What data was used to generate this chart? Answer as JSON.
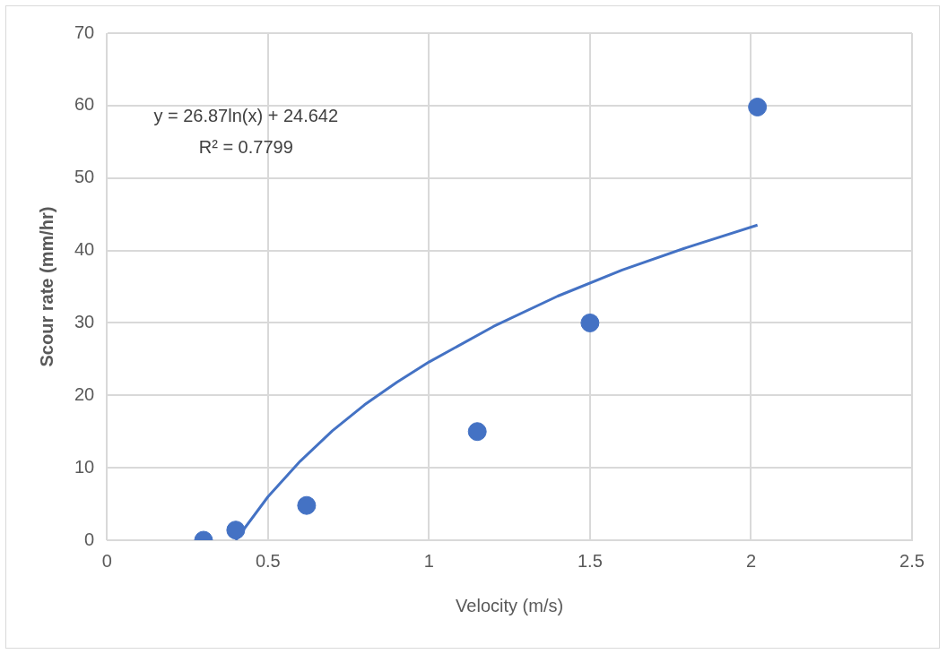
{
  "chart_data": {
    "type": "scatter",
    "xlabel": "Velocity (m/s)",
    "ylabel": "Scour rate (mm/hr)",
    "xlim": [
      0,
      2.5
    ],
    "xticks": [
      0,
      0.5,
      1,
      1.5,
      2,
      2.5
    ],
    "ylim": [
      0,
      70
    ],
    "yticks": [
      0,
      10,
      20,
      30,
      40,
      50,
      60,
      70
    ],
    "grid": true,
    "marker": "circle",
    "annotations": [
      "y = 26.87ln(x) + 24.642",
      "R² = 0.7799"
    ],
    "series": [
      {
        "type": "scatter",
        "color": "#4472c4",
        "x": [
          0.3,
          0.4,
          0.62,
          1.15,
          1.5,
          2.02
        ],
        "values": [
          0,
          1.4,
          4.8,
          15,
          30,
          59.8
        ]
      },
      {
        "type": "line",
        "marker": "none",
        "line_style": "solid",
        "color": "#4472c4",
        "x": [
          0.4,
          0.5,
          0.6,
          0.7,
          0.8,
          0.9,
          1.0,
          1.2,
          1.4,
          1.6,
          1.8,
          2.02
        ],
        "values": [
          0,
          6,
          10.9,
          15.1,
          18.7,
          21.8,
          24.6,
          29.5,
          33.7,
          37.3,
          40.4,
          43.5
        ]
      }
    ]
  }
}
